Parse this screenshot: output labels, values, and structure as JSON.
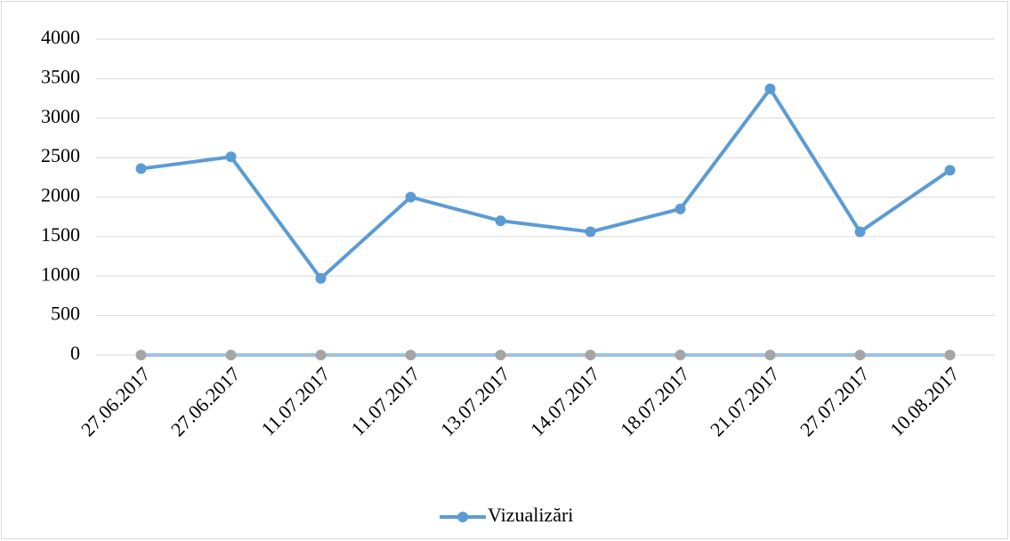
{
  "chart_data": {
    "type": "line",
    "categories": [
      "27.06.2017",
      "27.06.2017",
      "11.07.2017",
      "11.07.2017",
      "13.07.2017",
      "14.07.2017",
      "18.07.2017",
      "21.07.2017",
      "27.07.2017",
      "10.08.2017"
    ],
    "series": [
      {
        "name": "Vizualizări",
        "color": "#5b9bd5",
        "marker_color": "#5b9bd5",
        "values": [
          2360,
          2510,
          970,
          2000,
          1700,
          1560,
          1850,
          3370,
          1560,
          2340
        ]
      },
      {
        "color": "#9dc3e6",
        "marker_color": "#a5a5a5",
        "values": [
          0,
          0,
          0,
          0,
          0,
          0,
          0,
          0,
          0,
          0
        ]
      }
    ],
    "ylim": [
      0,
      4000
    ],
    "yticks": [
      0,
      500,
      1000,
      1500,
      2000,
      2500,
      3000,
      3500,
      4000
    ],
    "grid": true,
    "legend": "bottom"
  }
}
